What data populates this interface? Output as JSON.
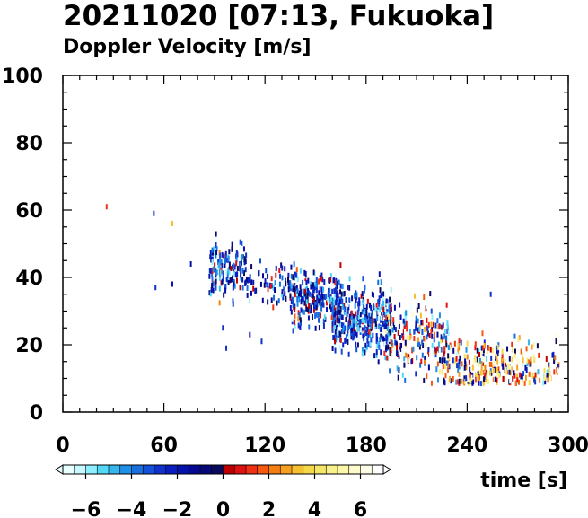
{
  "chart_data": {
    "type": "scatter",
    "title": "20211020 [07:13, Fukuoka]",
    "subtitle": "Doppler Velocity [m/s]",
    "xlabel": "time [s]",
    "ylabel": "",
    "xlim": [
      0,
      300
    ],
    "ylim": [
      0,
      100
    ],
    "x_ticks": [
      "0",
      "60",
      "120",
      "180",
      "240",
      "300"
    ],
    "y_ticks": [
      "0",
      "20",
      "40",
      "60",
      "80",
      "100"
    ],
    "grid": false,
    "colorbar": {
      "range": [
        -7,
        7
      ],
      "ticks": [
        "−6",
        "−4",
        "−2",
        "0",
        "2",
        "4",
        "6"
      ],
      "colors": [
        "#e8ffff",
        "#c8f8ff",
        "#8ef0ff",
        "#55d8f5",
        "#35b6ee",
        "#1e90e8",
        "#1a6fe0",
        "#1450d8",
        "#0f32cc",
        "#0a1ec0",
        "#0610aa",
        "#050890",
        "#07087a",
        "#0a0a5c",
        "#c00000",
        "#e01010",
        "#f03015",
        "#f55a10",
        "#f57f10",
        "#f5a020",
        "#f5c030",
        "#f5d848",
        "#f5e668",
        "#f8f088",
        "#fbf6aa",
        "#fdfacc",
        "#fefde6",
        "#ffffff"
      ]
    },
    "clusters": [
      {
        "t_start": 87,
        "t_end": 110,
        "h_center": 42,
        "h_spread": 4,
        "count": 160,
        "v_mean": -3.0,
        "v_spread": 2.0
      },
      {
        "t_start": 110,
        "t_end": 140,
        "h_center": 38,
        "h_spread": 3,
        "count": 80,
        "v_mean": -2.5,
        "v_spread": 2.0
      },
      {
        "t_start": 135,
        "t_end": 165,
        "h_center": 34,
        "h_spread": 4,
        "count": 230,
        "v_mean": -2.5,
        "v_spread": 2.0
      },
      {
        "t_start": 160,
        "t_end": 195,
        "h_center": 27,
        "h_spread": 5,
        "count": 380,
        "v_mean": -3.0,
        "v_spread": 1.8
      },
      {
        "t_start": 190,
        "t_end": 230,
        "h_center": 22,
        "h_spread": 5,
        "count": 230,
        "v_mean": -1.0,
        "v_spread": 3.5
      },
      {
        "t_start": 225,
        "t_end": 295,
        "h_center": 13,
        "h_spread": 4,
        "count": 320,
        "v_mean": 1.5,
        "v_spread": 3.5
      }
    ],
    "isolated_points": [
      {
        "t": 26,
        "h": 61,
        "v": 1
      },
      {
        "t": 54,
        "h": 59,
        "v": -3
      },
      {
        "t": 55,
        "h": 37,
        "v": -3
      },
      {
        "t": 65,
        "h": 56,
        "v": 3
      },
      {
        "t": 65,
        "h": 38,
        "v": -2
      },
      {
        "t": 76,
        "h": 44,
        "v": -2
      },
      {
        "t": 95,
        "h": 25,
        "v": -3
      },
      {
        "t": 97,
        "h": 19,
        "v": -3
      },
      {
        "t": 111,
        "h": 23,
        "v": -2
      },
      {
        "t": 118,
        "h": 21,
        "v": -3
      },
      {
        "t": 188,
        "h": 41,
        "v": -2
      },
      {
        "t": 254,
        "h": 35,
        "v": -3
      }
    ]
  }
}
